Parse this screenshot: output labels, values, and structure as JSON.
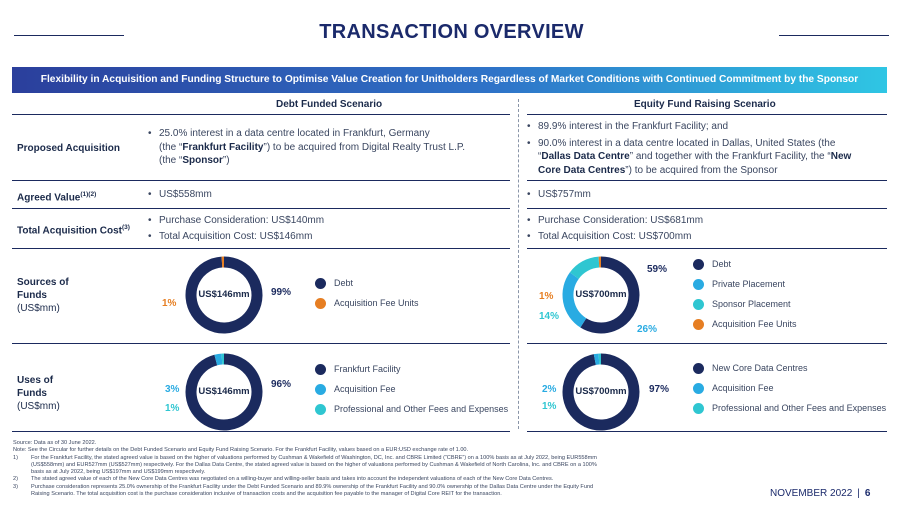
{
  "title": "TRANSACTION OVERVIEW",
  "banner": "Flexibility in Acquisition and Funding Structure to Optimise Value Creation for Unitholders Regardless of Market Conditions with Continued Commitment by the Sponsor",
  "columns": {
    "debt": "Debt Funded Scenario",
    "equity": "Equity Fund Raising Scenario"
  },
  "rows": {
    "proposed": {
      "label": "Proposed Acquisition",
      "debt_l1": "25.0% interest in a data centre located in Frankfurt, Germany",
      "debt_l2a": "(the “",
      "debt_l2b": "Frankfurt Facility",
      "debt_l2c": "”) to be acquired from Digital Realty Trust L.P.",
      "debt_l3a": "(the “",
      "debt_l3b": "Sponsor",
      "debt_l3c": "”)",
      "eq_b1": "89.9% interest in the Frankfurt Facility; and",
      "eq_b2_l1": "90.0% interest in a data centre located in Dallas, United States (the",
      "eq_b2_l2a": "“",
      "eq_b2_l2b": "Dallas Data Centre",
      "eq_b2_l2c": "” and together with the Frankfurt Facility, the “",
      "eq_b2_l2d": "New",
      "eq_b2_l3a": "Core Data Centres",
      "eq_b2_l3b": "”) to be acquired from the Sponsor"
    },
    "agreed": {
      "label": "Agreed Value",
      "sup": "(1)(2)",
      "debt": "US$558mm",
      "equity": "US$757mm"
    },
    "total": {
      "label": "Total Acquisition Cost",
      "sup": "(3)",
      "debt_b1": "Purchase Consideration: US$140mm",
      "debt_b2": "Total Acquisition Cost: US$146mm",
      "eq_b1": "Purchase Consideration: US$681mm",
      "eq_b2": "Total Acquisition Cost: US$700mm"
    },
    "sources": {
      "label_l1": "Sources of",
      "label_l2": "Funds",
      "label_sub": "(US$mm)"
    },
    "uses": {
      "label_l1": "Uses of",
      "label_l2": "Funds",
      "label_sub": "(US$mm)"
    }
  },
  "charts": {
    "sources_debt": {
      "center": "US$146mm",
      "slices": [
        {
          "name": "Debt",
          "label": "99%",
          "value": 99,
          "color": "#1b2a5e"
        },
        {
          "name": "Acquisition Fee Units",
          "label": "1%",
          "value": 1,
          "color": "#e67e22"
        }
      ]
    },
    "sources_equity": {
      "center": "US$700mm",
      "slices": [
        {
          "name": "Debt",
          "label": "59%",
          "value": 59,
          "color": "#1b2a5e"
        },
        {
          "name": "Private Placement",
          "label": "26%",
          "value": 26,
          "color": "#29abe2"
        },
        {
          "name": "Sponsor Placement",
          "label": "14%",
          "value": 14,
          "color": "#2fc6d1"
        },
        {
          "name": "Acquisition Fee Units",
          "label": "1%",
          "value": 1,
          "color": "#e67e22"
        }
      ]
    },
    "uses_debt": {
      "center": "US$146mm",
      "slices": [
        {
          "name": "Frankfurt Facility",
          "label": "96%",
          "value": 96,
          "color": "#1b2a5e"
        },
        {
          "name": "Acquisition Fee",
          "label": "3%",
          "value": 3,
          "color": "#29abe2"
        },
        {
          "name": "Professional and Other Fees and Expenses",
          "label": "1%",
          "value": 1,
          "color": "#2fc6d1"
        }
      ]
    },
    "uses_equity": {
      "center": "US$700mm",
      "slices": [
        {
          "name": "New Core Data Centres",
          "label": "97%",
          "value": 97,
          "color": "#1b2a5e"
        },
        {
          "name": "Acquisition Fee",
          "label": "2%",
          "value": 2,
          "color": "#29abe2"
        },
        {
          "name": "Professional and Other Fees and Expenses",
          "label": "1%",
          "value": 1,
          "color": "#2fc6d1"
        }
      ]
    }
  },
  "notes": {
    "source": "Source: Data as of 30 June 2022.",
    "note": "Note: See the Circular for further details on the Debt Funded Scenario and Equity Fund Raising Scenario. For the Frankfurt Facility, values based on a EUR:USD exchange rate of 1.00.",
    "n1_num": "1)",
    "n1_l1": "For the Frankfurt Facility, the stated agreed value is based on the higher of valuations performed by Cushman & Wakefield of Washington, DC, Inc. and CBRE Limited (“CBRE”) on a 100% basis as at July 2022, being EUR558mm",
    "n1_l2": "(US$558mm) and EUR527mm (US$527mm) respectively. For the Dallas Data Centre, the stated agreed value is based on the higher of valuations performed by Cushman & Wakefield of North Carolina, Inc. and CBRE on a 100%",
    "n1_l3": "basis as at July 2022, being US$197mm and US$199mm respectively.",
    "n2_num": "2)",
    "n2_l1": "The stated agreed value of each of the New Core Data Centres was negotiated on a willing-buyer and willing-seller basis and takes into account the independent valuations of each of the New Core Data Centres.",
    "n3_num": "3)",
    "n3_l1": "Purchase consideration represents 25.0% ownership of the Frankfurt Facility under the Debt Funded Scenario and 89.9% ownership of the Frankfurt Facility and 90.0% ownership of the Dallas Data Centre under the Equity Fund",
    "n3_l2": "Raising Scenario. The total acquisition cost is the purchase consideration inclusive of transaction costs and the acquisition fee payable to the manager of Digital Core REIT for the transaction."
  },
  "footer": {
    "date": "NOVEMBER 2022",
    "sep": "|",
    "page": "6"
  }
}
